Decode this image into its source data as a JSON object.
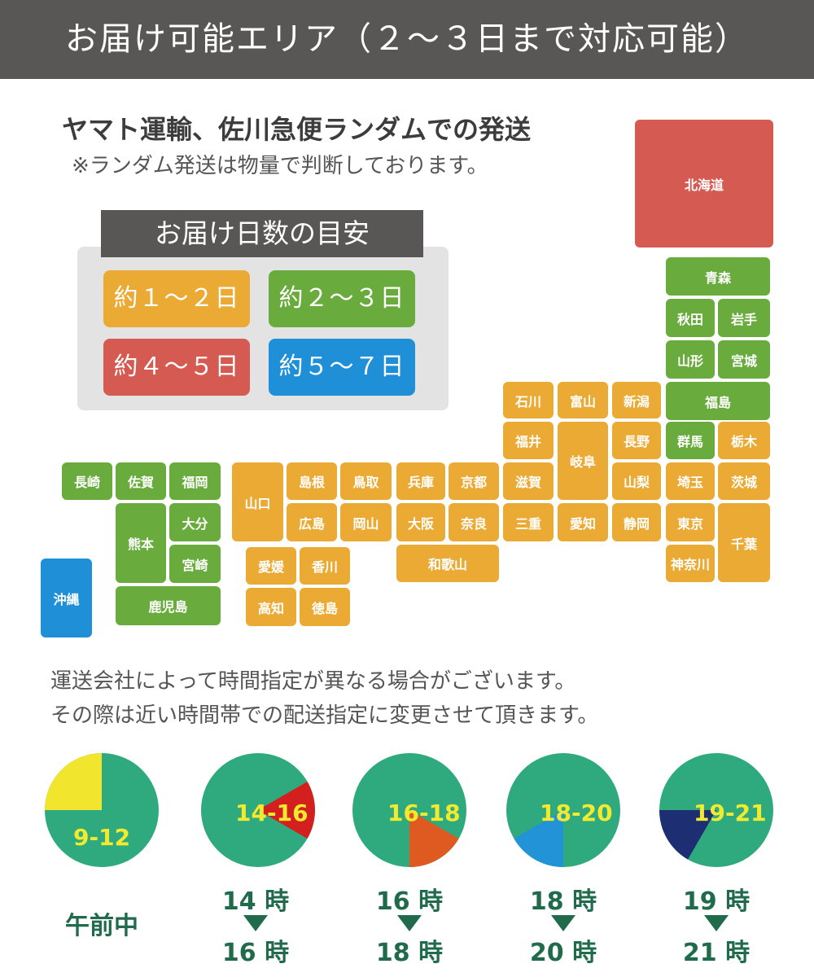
{
  "header": {
    "title": "お届け可能エリア（２～３日まで対応可能）"
  },
  "shipping": {
    "carriers": "ヤマト運輸、佐川急便ランダムでの発送",
    "note": "※ランダム発送は物量で判断しております。"
  },
  "legend": {
    "title": "お届け日数の目安",
    "items": [
      {
        "label": "約１～２日",
        "color": "#eaaa34"
      },
      {
        "label": "約２～３日",
        "color": "#6aab3e"
      },
      {
        "label": "約４～５日",
        "color": "#d55a51"
      },
      {
        "label": "約５～７日",
        "color": "#1f8fd8"
      }
    ]
  },
  "map": {
    "hokkaido": "北海道",
    "aomori": "青森",
    "akita": "秋田",
    "iwate": "岩手",
    "yamagata": "山形",
    "miyagi": "宮城",
    "fukushima": "福島",
    "ishikawa": "石川",
    "toyama": "富山",
    "niigata": "新潟",
    "fukui": "福井",
    "gifu": "岐阜",
    "nagano": "長野",
    "gunma": "群馬",
    "tochigi": "栃木",
    "shiga": "滋賀",
    "yamanashi": "山梨",
    "saitama": "埼玉",
    "ibaraki": "茨城",
    "mie": "三重",
    "aichi": "愛知",
    "shizuoka": "静岡",
    "tokyo": "東京",
    "chiba": "千葉",
    "kanagawa": "神奈川",
    "hyogo": "兵庫",
    "kyoto": "京都",
    "osaka": "大阪",
    "nara": "奈良",
    "wakayama": "和歌山",
    "shimane": "島根",
    "tottori": "鳥取",
    "hiroshima": "広島",
    "okayama": "岡山",
    "yamaguchi": "山口",
    "ehime": "愛媛",
    "kagawa": "香川",
    "kochi": "高知",
    "tokushima": "徳島",
    "nagasaki": "長崎",
    "saga": "佐賀",
    "fukuoka": "福岡",
    "kumamoto": "熊本",
    "oita": "大分",
    "miyazaki": "宮崎",
    "kagoshima": "鹿児島",
    "okinawa": "沖縄"
  },
  "info": {
    "line1": "運送会社によって時間指定が異なる場合がございます。",
    "line2": "その際は近い時間帯での配送指定に変更させて頂きます。"
  },
  "time_slots": [
    {
      "range": "9-12",
      "label": "午前中",
      "color": "#f2e52e"
    },
    {
      "range": "14-16",
      "from": "14 時",
      "to": "16 時",
      "color": "#d41f1f"
    },
    {
      "range": "16-18",
      "from": "16 時",
      "to": "18 時",
      "color": "#df5a20"
    },
    {
      "range": "18-20",
      "from": "18 時",
      "to": "20 時",
      "color": "#2393d8"
    },
    {
      "range": "19-21",
      "from": "19 時",
      "to": "21 時",
      "color": "#1d2f72"
    }
  ],
  "colors": {
    "clock_face": "#2eaa7e",
    "time_text": "#1f6b4c",
    "pie_label": "#f2ea2e"
  }
}
